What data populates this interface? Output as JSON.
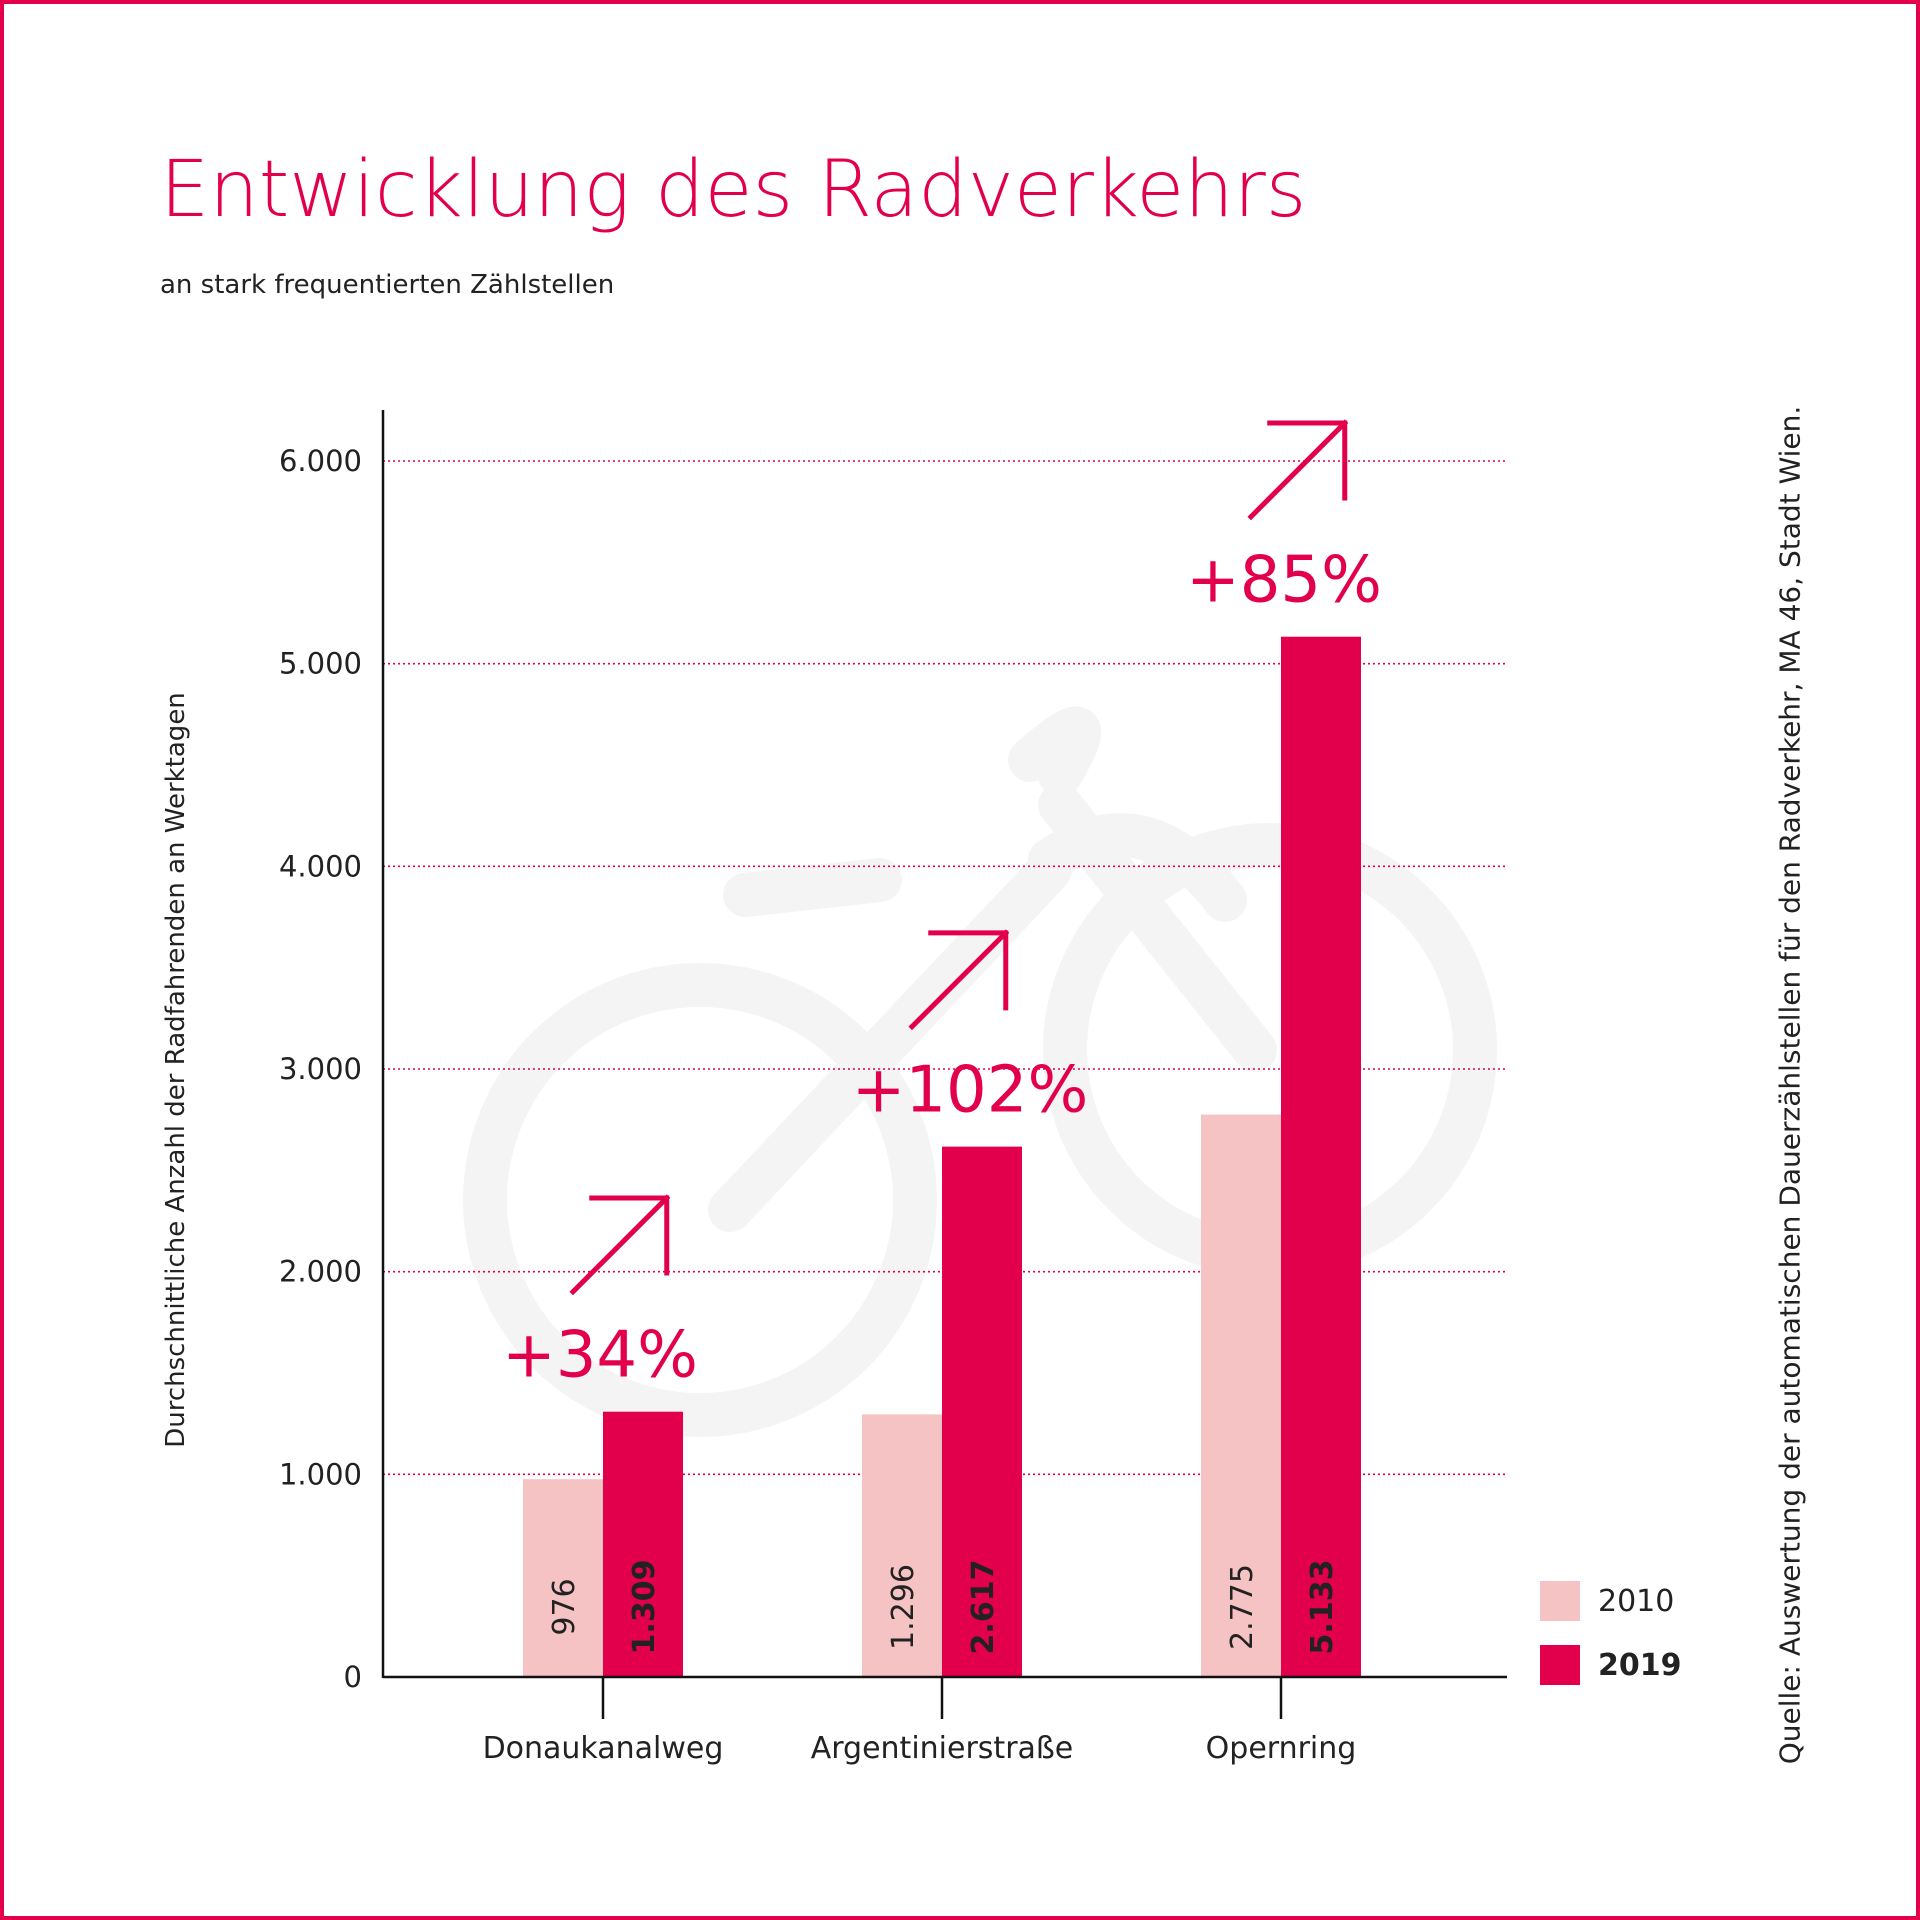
{
  "title": "Entwicklung des Radverkehrs",
  "subtitle": "an stark frequentierten Zählstellen",
  "source": "Quelle: Auswertung der automatischen Dauerzählstellen für den Radverkehr, MA 46, Stadt Wien.",
  "colors": {
    "accent": "#e2004d",
    "light": "#f5c3c3",
    "text": "#222222"
  },
  "chart_data": {
    "type": "bar",
    "title": "Entwicklung des Radverkehrs",
    "subtitle": "an stark frequentierten Zählstellen",
    "xlabel": "",
    "ylabel": "Durchschnittliche Anzahl der Radfahrenden an Werktagen",
    "ylim": [
      0,
      6000
    ],
    "yticks": [
      0,
      1000,
      2000,
      3000,
      4000,
      5000,
      6000
    ],
    "ytick_labels": [
      "0",
      "1.000",
      "2.000",
      "3.000",
      "4.000",
      "5.000",
      "6.000"
    ],
    "grid": "horizontal dotted",
    "legend": "bottom-right",
    "categories": [
      "Donaukanalweg",
      "Argentinierstraße",
      "Opernring"
    ],
    "series": [
      {
        "name": "2010",
        "color": "#f5c3c3",
        "values": [
          976,
          1296,
          2775
        ],
        "labels": [
          "976",
          "1.296",
          "2.775"
        ]
      },
      {
        "name": "2019",
        "color": "#e2004d",
        "values": [
          1309,
          2617,
          5133
        ],
        "labels": [
          "1.309",
          "2.617",
          "5.133"
        ]
      }
    ],
    "annotations": [
      "+34%",
      "+102%",
      "+85%"
    ]
  }
}
